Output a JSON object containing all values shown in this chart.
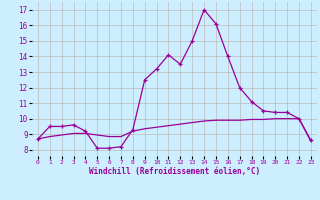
{
  "x": [
    0,
    1,
    2,
    3,
    4,
    5,
    6,
    7,
    8,
    9,
    10,
    11,
    12,
    13,
    14,
    15,
    16,
    17,
    18,
    19,
    20,
    21,
    22,
    23
  ],
  "line1": [
    8.7,
    9.5,
    9.5,
    9.6,
    9.2,
    8.1,
    8.1,
    8.2,
    9.3,
    12.5,
    13.2,
    14.1,
    13.5,
    15.0,
    17.0,
    16.1,
    14.0,
    12.0,
    11.1,
    10.5,
    10.4,
    10.4,
    10.0,
    8.6
  ],
  "line2": [
    8.7,
    8.85,
    8.95,
    9.05,
    9.05,
    8.95,
    8.85,
    8.85,
    9.2,
    9.35,
    9.45,
    9.55,
    9.65,
    9.75,
    9.85,
    9.9,
    9.9,
    9.9,
    9.95,
    9.95,
    10.0,
    10.0,
    10.0,
    8.55
  ],
  "line_color": "#990099",
  "bg_color": "#cceeff",
  "grid_color": "#bbbbbb",
  "yticks": [
    8,
    9,
    10,
    11,
    12,
    13,
    14,
    15,
    16,
    17
  ],
  "xlabel": "Windchill (Refroidissement éolien,°C)",
  "ylim": [
    7.6,
    17.5
  ],
  "xlim": [
    -0.5,
    23.5
  ]
}
